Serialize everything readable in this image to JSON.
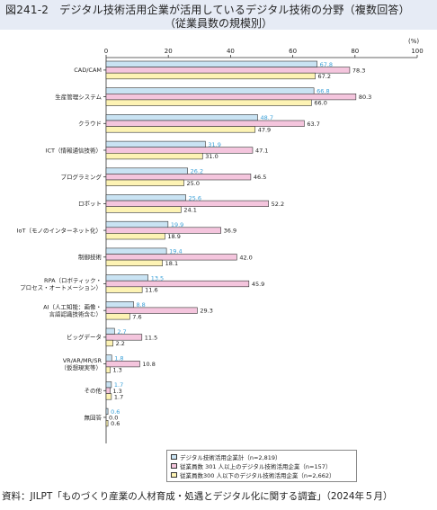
{
  "title": {
    "line1": "図241-2　デジタル技術活用企業が活用しているデジタル技術の分野（複数回答）",
    "line2": "（従業員数の規模別）"
  },
  "unit": "(%)",
  "source": "資料：JILPT「ものづくり産業の人材育成・処遇とデジタル化に関する調査」（2024年５月）",
  "colors": {
    "series1": "#c9e3f3",
    "series2": "#f4c5dd",
    "series3": "#fdf3b4",
    "series1_label": "#3aa0d8",
    "title_band": "#e6ebf5"
  },
  "legend": [
    "デジタル技術活用企業計（n=2,819）",
    "従業員数 301 人以上のデジタル技術活用企業（n=157）",
    "従業員数300 人以下のデジタル技術活用企業（n=2,662）"
  ],
  "chart_data": {
    "type": "bar",
    "orientation": "horizontal",
    "xlim": [
      0,
      100
    ],
    "xticks": [
      "0",
      "20",
      "40",
      "60",
      "80",
      "100"
    ],
    "grid": false,
    "legend_position": "bottom-right",
    "categories": [
      [
        "CAD/CAM"
      ],
      [
        "生産管理システム"
      ],
      [
        "クラウド"
      ],
      [
        "ICT（情報通信技術）"
      ],
      [
        "プログラミング"
      ],
      [
        "ロボット"
      ],
      [
        "IoT（モノのインターネット化）"
      ],
      [
        "制御技術"
      ],
      [
        "RPA（ロボティック・",
        "プロセス・オートメーション）"
      ],
      [
        "AI（人工知能：画像・",
        "言語認識技術含む）"
      ],
      [
        "ビッグデータ"
      ],
      [
        "VR/AR/MR/SR",
        "（仮想現実等）"
      ],
      [
        "その他"
      ],
      [
        "無回答"
      ]
    ],
    "series": [
      {
        "name": "デジタル技術活用企業計（n=2,819）",
        "values": [
          67.8,
          66.8,
          48.7,
          31.9,
          26.2,
          25.6,
          19.9,
          19.4,
          13.5,
          8.8,
          2.7,
          1.8,
          1.7,
          0.6
        ]
      },
      {
        "name": "従業員数 301 人以上のデジタル技術活用企業（n=157）",
        "values": [
          78.3,
          80.3,
          63.7,
          47.1,
          46.5,
          52.2,
          36.9,
          42.0,
          45.9,
          29.3,
          11.5,
          10.8,
          1.3,
          0.0
        ]
      },
      {
        "name": "従業員数300 人以下のデジタル技術活用企業（n=2,662）",
        "values": [
          67.2,
          66.0,
          47.9,
          31.0,
          25.0,
          24.1,
          18.9,
          18.1,
          11.6,
          7.6,
          2.2,
          1.3,
          1.7,
          0.6
        ]
      }
    ]
  }
}
